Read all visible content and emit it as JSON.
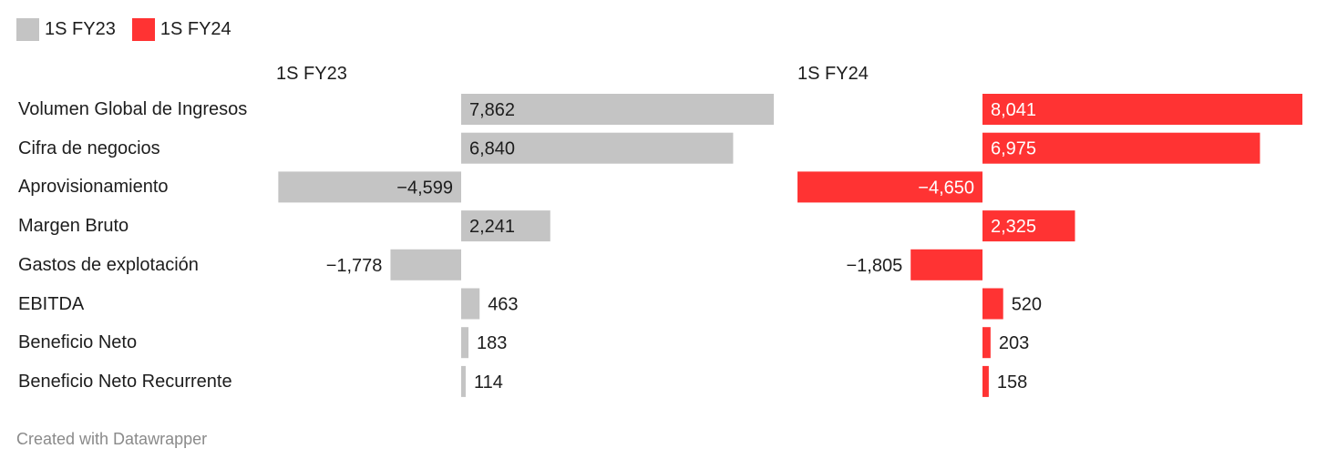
{
  "legend": [
    {
      "label": "1S FY23",
      "color": "#c4c4c4"
    },
    {
      "label": "1S FY24",
      "color": "#ff3333"
    }
  ],
  "credit": "Created with Datawrapper",
  "chart_data": {
    "type": "bar",
    "orientation": "horizontal",
    "categories": [
      "Volumen Global de Ingresos",
      "Cifra de negocios",
      "Aprovisionamiento",
      "Margen Bruto",
      "Gastos de explotación",
      "EBITDA",
      "Beneficio Neto",
      "Beneficio Neto Recurrente"
    ],
    "series": [
      {
        "name": "1S FY23",
        "color": "#c4c4c4",
        "values": [
          7862,
          6840,
          -4599,
          2241,
          -1778,
          463,
          183,
          114
        ],
        "labels": [
          "7,862",
          "6,840",
          "−4,599",
          "2,241",
          "−1,778",
          "463",
          "183",
          "114"
        ]
      },
      {
        "name": "1S FY24",
        "color": "#ff3333",
        "values": [
          8041,
          6975,
          -4650,
          2325,
          -1805,
          520,
          203,
          158
        ],
        "labels": [
          "8,041",
          "6,975",
          "−4,650",
          "2,325",
          "−1,805",
          "520",
          "203",
          "158"
        ]
      }
    ],
    "legend_position": "top-left"
  }
}
